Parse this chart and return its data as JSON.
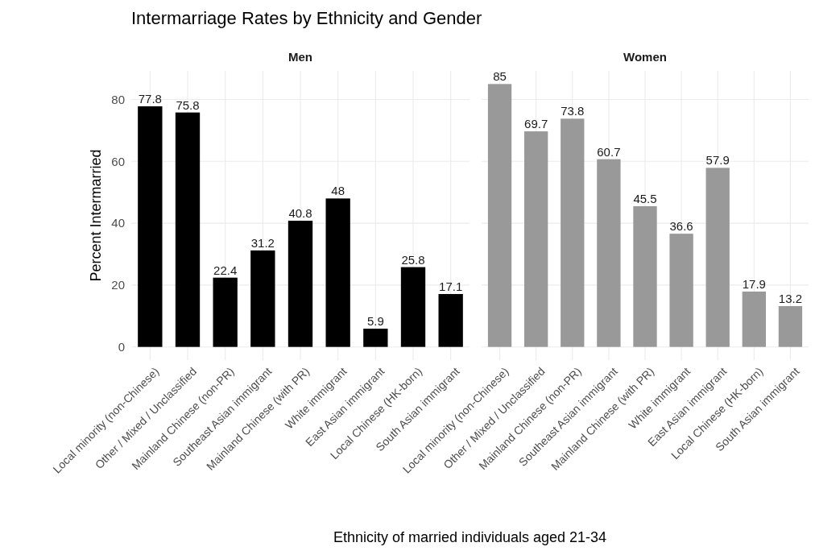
{
  "chart_data": [
    {
      "type": "bar",
      "title": "Intermarriage Rates by Ethnicity and Gender",
      "subtitle": "Men",
      "xlabel": "Ethnicity of married individuals aged 21-34",
      "ylabel": "Percent Intermarried",
      "categories": [
        "Local minority (non-Chinese)",
        "Other / Mixed / Unclassified",
        "Mainland Chinese (non-PR)",
        "Southeast Asian immigrant",
        "Mainland Chinese (with PR)",
        "White immigrant",
        "East Asian immigrant",
        "Local Chinese (HK-born)",
        "South Asian immigrant"
      ],
      "values": [
        77.8,
        75.8,
        22.4,
        31.2,
        40.8,
        48,
        5.9,
        25.8,
        17.1
      ],
      "color": "#000000",
      "ylim": [
        -4.25,
        89.25
      ],
      "yticks": [
        0,
        20,
        40,
        60,
        80
      ],
      "grid": true,
      "data_labels": true
    },
    {
      "type": "bar",
      "subtitle": "Women",
      "categories": [
        "Local minority (non-Chinese)",
        "Other / Mixed / Unclassified",
        "Mainland Chinese (non-PR)",
        "Southeast Asian immigrant",
        "Mainland Chinese (with PR)",
        "White immigrant",
        "East Asian immigrant",
        "Local Chinese (HK-born)",
        "South Asian immigrant"
      ],
      "values": [
        85,
        69.7,
        73.8,
        60.7,
        45.5,
        36.6,
        57.9,
        17.9,
        13.2
      ],
      "color": "#999999",
      "ylim": [
        -4.25,
        89.25
      ],
      "yticks": [
        0,
        20,
        40,
        60,
        80
      ],
      "grid": true,
      "data_labels": true,
      "tick_labels": "x"
    }
  ]
}
